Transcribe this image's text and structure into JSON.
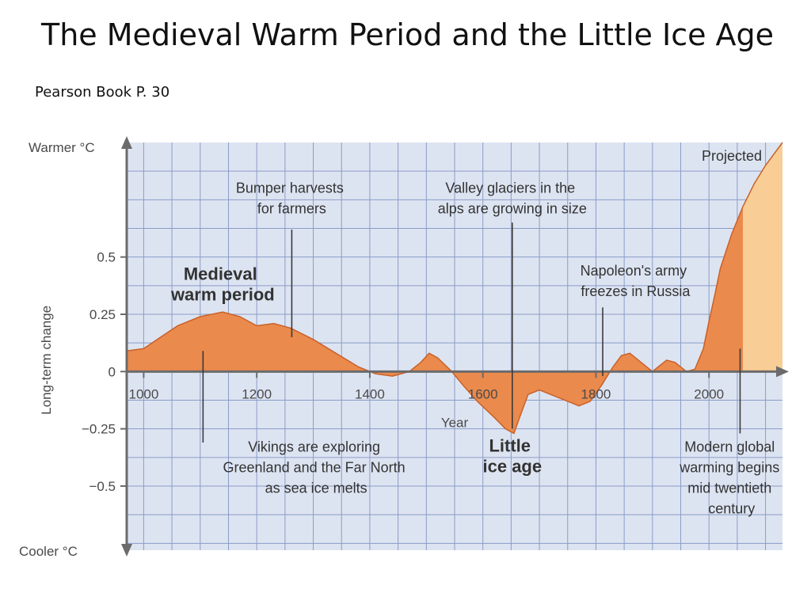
{
  "slide": {
    "title": "The Medieval Warm Period and the Little Ice Age",
    "subtitle": "Pearson Book P. 30"
  },
  "colors": {
    "fill": "#ea8a4c",
    "projected_fill": "#f9cd96",
    "curve": "#c9612a",
    "grid": "#8a9cc8",
    "plot_bg": "#dde4f1",
    "axis": "#6b6b6b"
  },
  "chart_data": {
    "type": "area",
    "title": "",
    "xlabel": "Year",
    "ylabel": "Long-term change",
    "y_top_label": "Warmer °C",
    "y_bottom_label": "Cooler °C",
    "xlim": [
      970,
      2130
    ],
    "ylim": [
      -0.78,
      1.0
    ],
    "x_ticks": [
      {
        "value": 1000,
        "label": "1000"
      },
      {
        "value": 1200,
        "label": "1200"
      },
      {
        "value": 1400,
        "label": "1400"
      },
      {
        "value": 1600,
        "label": "1600"
      },
      {
        "value": 1800,
        "label": "1800"
      },
      {
        "value": 2000,
        "label": "2000"
      }
    ],
    "y_ticks": [
      {
        "value": 0.5,
        "label": "0.5"
      },
      {
        "value": 0.25,
        "label": "0.25"
      },
      {
        "value": 0,
        "label": "0"
      },
      {
        "value": -0.25,
        "label": "−0.25"
      },
      {
        "value": -0.5,
        "label": "−0.5"
      }
    ],
    "projection_start": 2060,
    "projected_label": "Projected",
    "grid": true,
    "series": [
      {
        "x": [
          970,
          1000,
          1030,
          1060,
          1100,
          1140,
          1170,
          1200,
          1230,
          1260,
          1300,
          1340,
          1380,
          1410,
          1440,
          1470,
          1490,
          1505,
          1520,
          1545,
          1565,
          1590,
          1620,
          1640,
          1655,
          1665,
          1680,
          1700,
          1720,
          1750,
          1770,
          1790,
          1810,
          1830,
          1845,
          1860,
          1880,
          1900,
          1910,
          1925,
          1940,
          1960,
          1975,
          1990,
          2000,
          2010,
          2020,
          2040,
          2060,
          2080,
          2100,
          2130
        ],
        "values": [
          0.09,
          0.1,
          0.15,
          0.2,
          0.24,
          0.26,
          0.24,
          0.2,
          0.21,
          0.19,
          0.14,
          0.08,
          0.02,
          -0.01,
          -0.02,
          0.0,
          0.04,
          0.08,
          0.06,
          0.0,
          -0.06,
          -0.13,
          -0.2,
          -0.25,
          -0.27,
          -0.2,
          -0.1,
          -0.08,
          -0.1,
          -0.13,
          -0.15,
          -0.13,
          -0.06,
          0.02,
          0.07,
          0.08,
          0.04,
          0.0,
          0.02,
          0.05,
          0.04,
          0.0,
          0.01,
          0.1,
          0.22,
          0.33,
          0.45,
          0.6,
          0.72,
          0.82,
          0.9,
          1.0
        ]
      }
    ],
    "annotations": [
      {
        "lines": [
          "Bumper harvests",
          "for farmers"
        ],
        "style": "normal",
        "x": 1262,
        "y": 0.78,
        "pointer": [
          1262,
          0.62,
          0.15
        ]
      },
      {
        "lines": [
          "Valley glaciers in the",
          "alps are growing in size"
        ],
        "style": "normal",
        "x": 1652,
        "y": 0.78,
        "pointer": [
          1652,
          0.65,
          -0.25
        ]
      },
      {
        "lines": [
          "Napoleon's army",
          "freezes in Russia"
        ],
        "style": "normal",
        "x": 1870,
        "y": 0.42,
        "pointer": [
          1812,
          0.28,
          -0.02
        ]
      },
      {
        "lines": [
          "Medieval",
          "warm period"
        ],
        "style": "bold",
        "x": 1140,
        "y": 0.4,
        "pointer": null
      },
      {
        "lines": [
          "Vikings are exploring",
          "Greenland and the Far North",
          "as sea ice melts"
        ],
        "style": "normal",
        "x": 1305,
        "y": -0.35,
        "pointer": [
          1105,
          0.09,
          -0.31
        ]
      },
      {
        "lines": [
          "Little",
          "ice age"
        ],
        "style": "bold",
        "x": 1652,
        "y": -0.35,
        "pointer": null
      },
      {
        "lines": [
          "Modern global",
          "warming begins",
          "mid twentieth",
          "century"
        ],
        "style": "normal",
        "x": 2040,
        "y": -0.35,
        "pointer": [
          2055,
          0.1,
          -0.27
        ]
      }
    ]
  }
}
